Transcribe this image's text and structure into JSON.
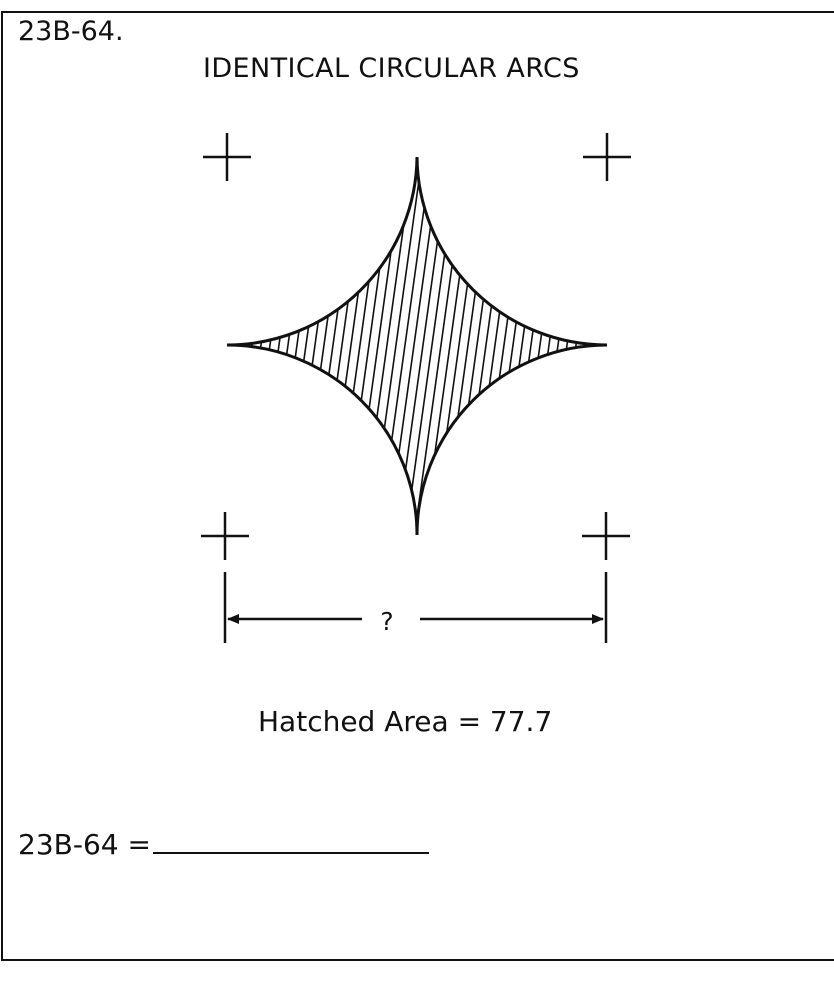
{
  "problem": {
    "id": "23B-64.",
    "title": "IDENTICAL CIRCULAR ARCS"
  },
  "figure": {
    "dimension_label": "?",
    "shape": "four-point star bounded by identical circular arcs",
    "hatch": "diagonal line hatching"
  },
  "given": {
    "hatched_area_text": "Hatched Area = 77.7"
  },
  "answer": {
    "label": "23B-64 ="
  }
}
